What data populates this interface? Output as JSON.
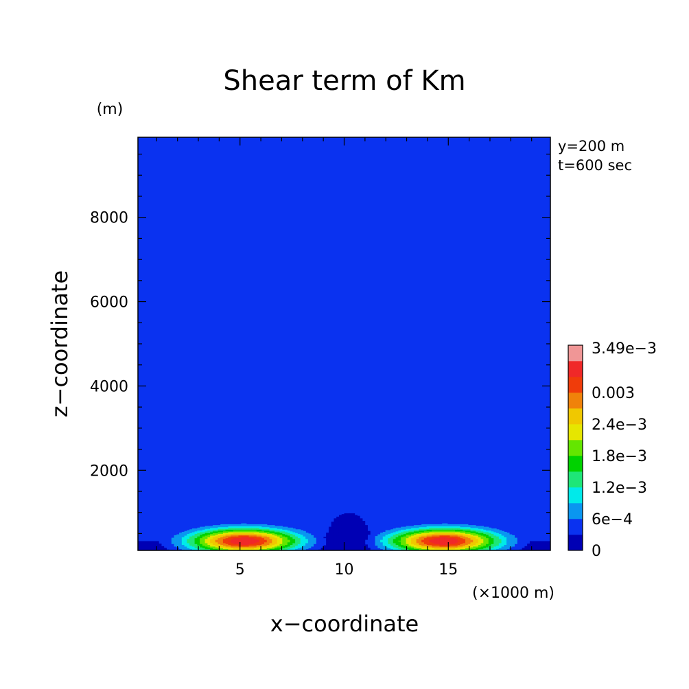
{
  "chart_data": {
    "type": "heatmap",
    "title": "Shear term of Km",
    "xlabel": "x−coordinate",
    "ylabel": "z−coordinate",
    "x_unit": "(×1000 m)",
    "y_unit": "(m)",
    "annotations": [
      "y=200 m",
      "t=600 sec"
    ],
    "xlim": [
      0.1,
      19.9
    ],
    "ylim": [
      100,
      9900
    ],
    "xticks": [
      {
        "value": 5,
        "label": "5"
      },
      {
        "value": 10,
        "label": "10"
      },
      {
        "value": 15,
        "label": "15"
      }
    ],
    "yticks": [
      {
        "value": 2000,
        "label": "2000"
      },
      {
        "value": 4000,
        "label": "4000"
      },
      {
        "value": 6000,
        "label": "6000"
      },
      {
        "value": 8000,
        "label": "8000"
      }
    ],
    "colorbar": {
      "levels": [
        0,
        0.0003,
        0.0006,
        0.0009,
        0.0012,
        0.0015,
        0.0018,
        0.0021,
        0.0024,
        0.0027,
        0.003,
        0.0033,
        0.00349
      ],
      "colors": [
        "#0000b4",
        "#0a32f0",
        "#0a96f0",
        "#00eaea",
        "#1ee678",
        "#00d200",
        "#64e600",
        "#e6e600",
        "#f0c800",
        "#f0820a",
        "#f03c0a",
        "#f02828",
        "#f09696"
      ],
      "labels": [
        {
          "value": 0,
          "label": "0"
        },
        {
          "value": 0.0006,
          "label": "6e−4"
        },
        {
          "value": 0.0012,
          "label": "1.2e−3"
        },
        {
          "value": 0.0018,
          "label": "1.8e−3"
        },
        {
          "value": 0.0024,
          "label": "2.4e−3"
        },
        {
          "value": 0.003,
          "label": "0.003"
        },
        {
          "value": 0.00349,
          "label": "3.49e−3"
        }
      ]
    },
    "field": {
      "background_value": 0.00045,
      "maxima": [
        {
          "x": 5.2,
          "z": 330,
          "value": 0.00349
        },
        {
          "x": 14.8,
          "z": 330,
          "value": 0.00349
        }
      ],
      "minimum": {
        "x": 10.2,
        "z": 500,
        "value": 0.00015
      },
      "blob": {
        "x": 10.0,
        "z": 1200,
        "value": 0.0001
      }
    }
  }
}
